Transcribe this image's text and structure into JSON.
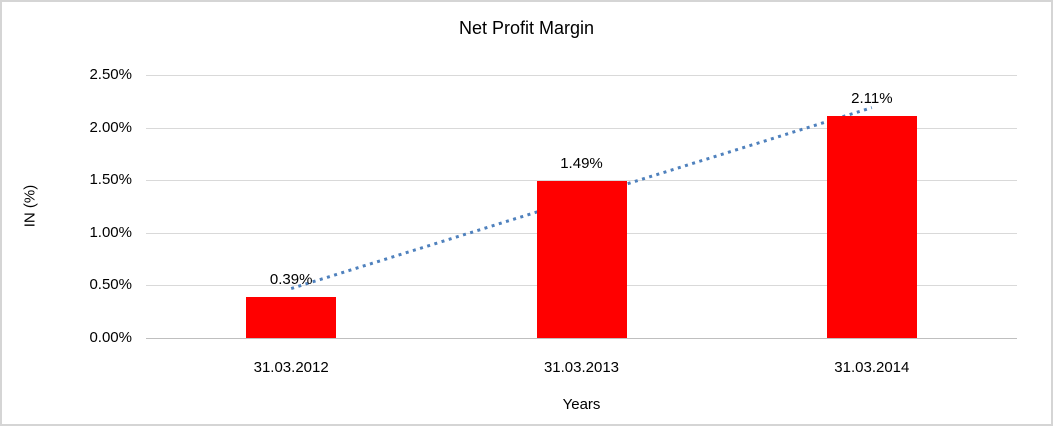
{
  "frame": {
    "border_color": "#d5d5d5",
    "background": "#ffffff"
  },
  "chart_data": {
    "type": "bar",
    "title": "Net Profit Margin",
    "xlabel": "Years",
    "ylabel": "IN (%)",
    "categories": [
      "31.03.2012",
      "31.03.2013",
      "31.03.2014"
    ],
    "values": [
      0.39,
      1.49,
      2.11
    ],
    "data_labels": [
      "0.39%",
      "1.49%",
      "2.11%"
    ],
    "bar_color": "#ff0000",
    "ylim": [
      0,
      2.5
    ],
    "y_ticks": [
      {
        "value": 0.0,
        "label": "0.00%"
      },
      {
        "value": 0.5,
        "label": "0.50%"
      },
      {
        "value": 1.0,
        "label": "1.00%"
      },
      {
        "value": 1.5,
        "label": "1.50%"
      },
      {
        "value": 2.0,
        "label": "2.00%"
      },
      {
        "value": 2.5,
        "label": "2.50%"
      }
    ],
    "grid": true,
    "gridline_color": "#d9d9d9",
    "legend": "none",
    "trendline": {
      "type": "linear",
      "style": "dotted",
      "color": "#4f81bd",
      "start_category": "31.03.2012",
      "start_value": 0.47,
      "end_category": "31.03.2014",
      "end_value": 2.19
    }
  }
}
